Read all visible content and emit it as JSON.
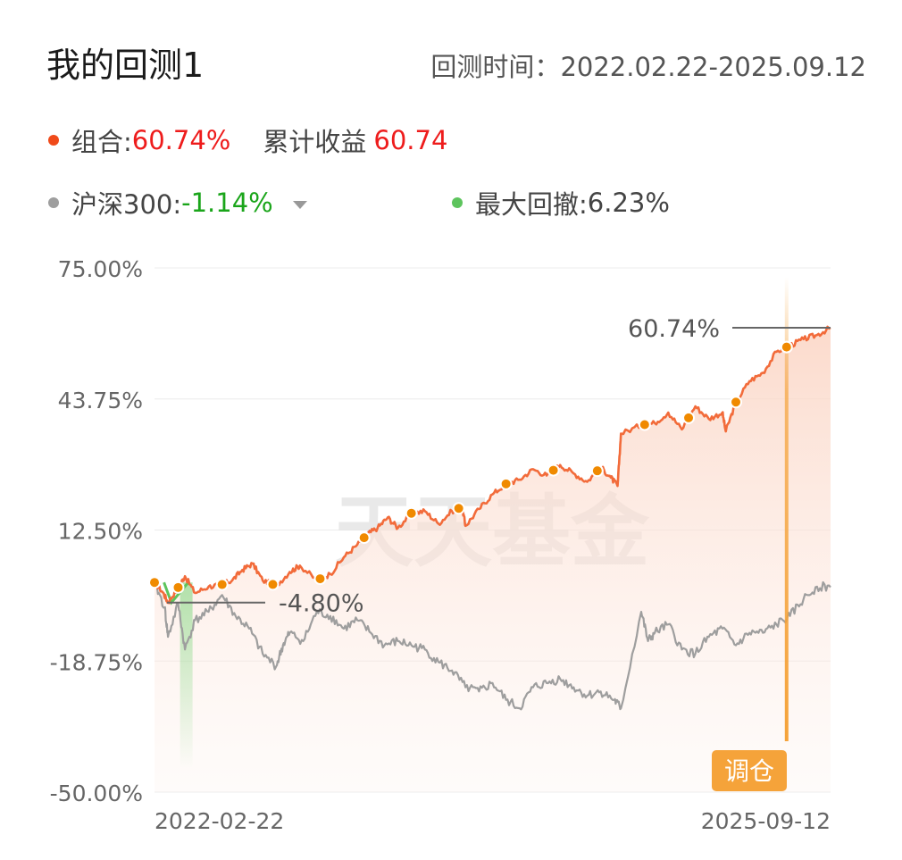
{
  "header": {
    "title": "我的回测1",
    "period_label": "回测时间：",
    "period_value": "2022.02.22-2025.09.12"
  },
  "legend": {
    "portfolio_label": "组合:",
    "portfolio_value": "60.74%",
    "cum_label": "累计收益",
    "cum_value": "60.74",
    "benchmark_label": "沪深300:",
    "benchmark_value": "-1.14%",
    "drawdown_label": "最大回撤:",
    "drawdown_value": "6.23%"
  },
  "colors": {
    "portfolio": "#f26b3a",
    "benchmark": "#9e9e9e",
    "drawdown": "#5dc45d",
    "marker": "#f08a00",
    "rebalance": "#f5a33a",
    "benchmark_negative": "#1aa51a",
    "portfolio_positive": "#ee1c1c"
  },
  "watermark": "天天基金",
  "rebalance_label": "调仓",
  "chart_data": {
    "type": "line",
    "x_start_label": "2022-02-22",
    "x_end_label": "2025-09-12",
    "y_ticks": [
      "75.00%",
      "43.75%",
      "12.50%",
      "-18.75%",
      "-50.00%"
    ],
    "y_tick_values": [
      75,
      43.75,
      12.5,
      -18.75,
      -50
    ],
    "ylim": [
      -50,
      75
    ],
    "grid": true,
    "series": [
      {
        "name": "组合",
        "t": [
          0,
          0.013,
          0.02,
          0.035,
          0.045,
          0.06,
          0.08,
          0.1,
          0.115,
          0.13,
          0.145,
          0.16,
          0.18,
          0.2,
          0.215,
          0.24,
          0.26,
          0.28,
          0.3,
          0.315,
          0.33,
          0.345,
          0.36,
          0.38,
          0.4,
          0.42,
          0.44,
          0.455,
          0.46,
          0.48,
          0.5,
          0.52,
          0.54,
          0.56,
          0.58,
          0.6,
          0.62,
          0.64,
          0.66,
          0.675,
          0.685,
          0.69,
          0.72,
          0.74,
          0.76,
          0.78,
          0.8,
          0.82,
          0.84,
          0.845,
          0.86,
          0.88,
          0.9,
          0.92,
          0.94,
          0.96,
          0.98,
          1.0
        ],
        "values": [
          0,
          -2.5,
          -4.8,
          -1.2,
          1.5,
          -2.5,
          -1.0,
          -0.5,
          0.5,
          3.0,
          4.5,
          0.5,
          -0.8,
          2.5,
          4.0,
          0.5,
          2.0,
          6.0,
          9.0,
          11.5,
          13.0,
          15.5,
          13.0,
          16.5,
          17.0,
          14.0,
          17.0,
          18.0,
          13.5,
          17.5,
          21.0,
          23.5,
          24.5,
          27.0,
          25.5,
          28.0,
          26.0,
          24.0,
          27.5,
          25.0,
          23.0,
          35.5,
          37.5,
          38.0,
          40.5,
          36.5,
          42.0,
          39.0,
          40.5,
          36.0,
          43.0,
          48.0,
          50.0,
          55.0,
          56.5,
          58.0,
          59.0,
          60.74
        ]
      },
      {
        "name": "沪深300",
        "t": [
          0,
          0.015,
          0.02,
          0.035,
          0.045,
          0.06,
          0.08,
          0.1,
          0.12,
          0.14,
          0.16,
          0.18,
          0.19,
          0.2,
          0.22,
          0.24,
          0.26,
          0.28,
          0.3,
          0.32,
          0.34,
          0.36,
          0.38,
          0.4,
          0.42,
          0.44,
          0.46,
          0.48,
          0.5,
          0.52,
          0.54,
          0.56,
          0.58,
          0.6,
          0.62,
          0.64,
          0.66,
          0.68,
          0.69,
          0.72,
          0.73,
          0.74,
          0.76,
          0.78,
          0.8,
          0.82,
          0.84,
          0.86,
          0.88,
          0.9,
          0.92,
          0.94,
          0.96,
          0.98,
          1.0
        ],
        "values": [
          0,
          -6.0,
          -13.0,
          -5.0,
          -16.0,
          -9.0,
          -7.0,
          -3.0,
          -8.0,
          -11.0,
          -17.0,
          -20.0,
          -15.0,
          -12.0,
          -14.0,
          -7.0,
          -8.0,
          -11.0,
          -9.0,
          -12.0,
          -15.0,
          -14.0,
          -15.0,
          -16.0,
          -19.0,
          -21.0,
          -25.0,
          -26.0,
          -24.0,
          -28.0,
          -30.0,
          -25.0,
          -24.0,
          -23.0,
          -25.0,
          -27.0,
          -26.0,
          -28.0,
          -30.0,
          -7.0,
          -14.0,
          -12.0,
          -10.0,
          -16.0,
          -17.0,
          -13.0,
          -11.0,
          -15.0,
          -12.0,
          -12.0,
          -10.0,
          -8.0,
          -4.0,
          -1.0,
          -1.14
        ]
      },
      {
        "name": "最大回撤",
        "t": [
          0.014,
          0.025,
          0.05
        ],
        "values": [
          0,
          -4.8,
          0
        ]
      }
    ],
    "markers_t": [
      0,
      0.035,
      0.1,
      0.175,
      0.245,
      0.31,
      0.38,
      0.45,
      0.52,
      0.59,
      0.655,
      0.725,
      0.79,
      0.86,
      0.935
    ],
    "annotations": {
      "max_value": "60.74%",
      "min_value": "-4.80%"
    },
    "rebalance_t": 0.935
  }
}
